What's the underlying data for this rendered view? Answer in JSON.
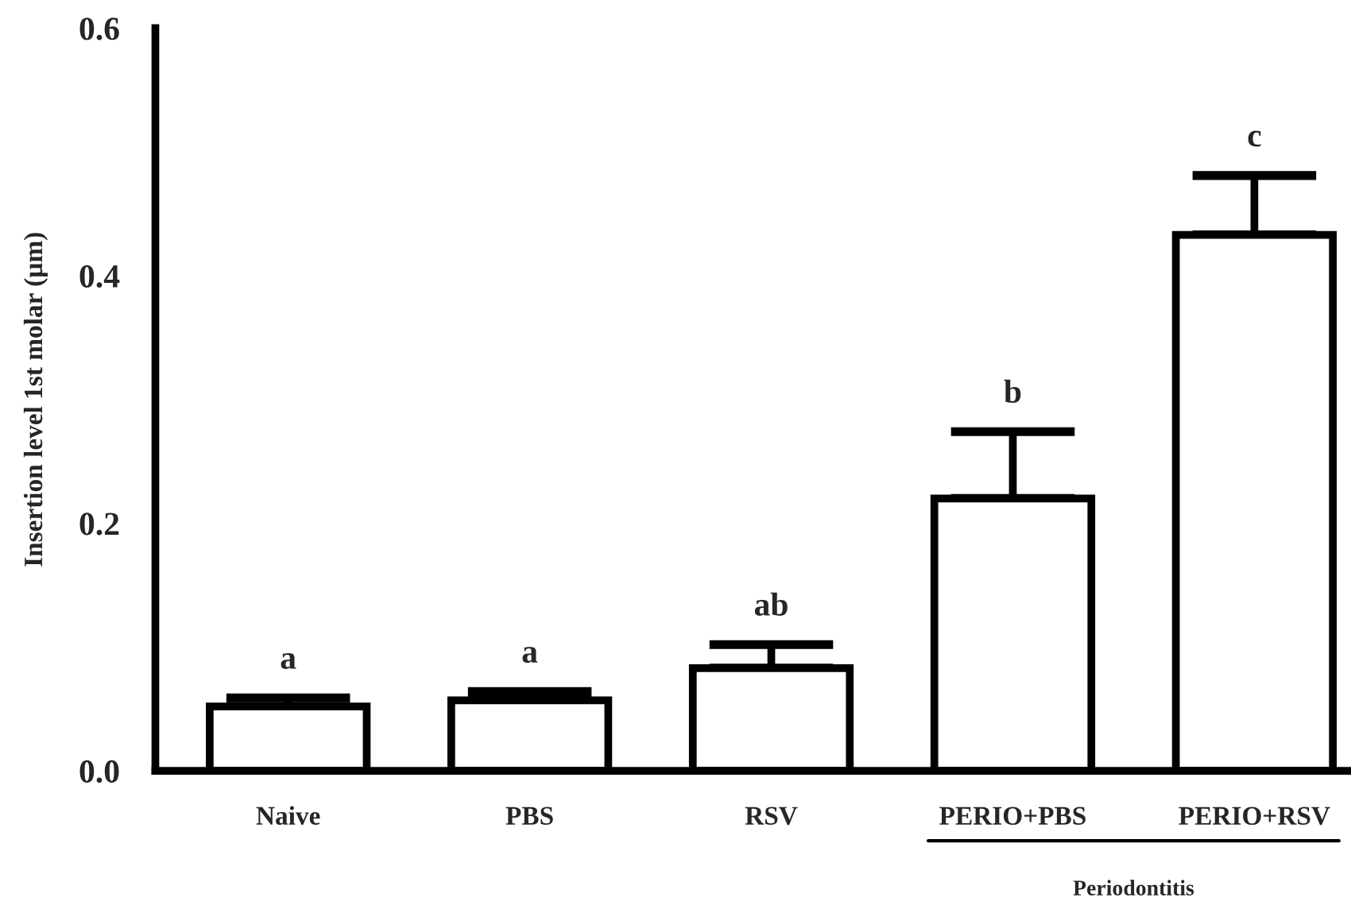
{
  "chart_data": {
    "type": "bar",
    "ylabel": "Insertion level 1st molar (µm)",
    "categories": [
      "Naive",
      "PBS",
      "RSV",
      "PERIO+PBS",
      "PERIO+RSV"
    ],
    "values": [
      0.052,
      0.057,
      0.083,
      0.22,
      0.433
    ],
    "errors": [
      [
        0.052,
        0.059
      ],
      [
        0.057,
        0.064
      ],
      [
        0.083,
        0.102
      ],
      [
        0.22,
        0.274
      ],
      [
        0.433,
        0.481
      ]
    ],
    "color": "#ffffff",
    "ylim": [
      0,
      0.6
    ],
    "yticks": [
      {
        "value": 0,
        "label": "0.0"
      },
      0.2,
      0.4,
      0.6
    ],
    "grid": false,
    "annotations": [
      {
        "text": "a",
        "x": "Naive",
        "y": 0.059
      },
      {
        "text": "a",
        "x": "PBS",
        "y": 0.064
      },
      {
        "text": "ab",
        "x": "RSV",
        "y": 0.102
      },
      {
        "text": "b",
        "x": "PERIO+PBS",
        "y": 0.274
      },
      {
        "text": "c",
        "x": "PERIO+RSV",
        "y": 0.481
      },
      "Periodontitis"
    ]
  }
}
